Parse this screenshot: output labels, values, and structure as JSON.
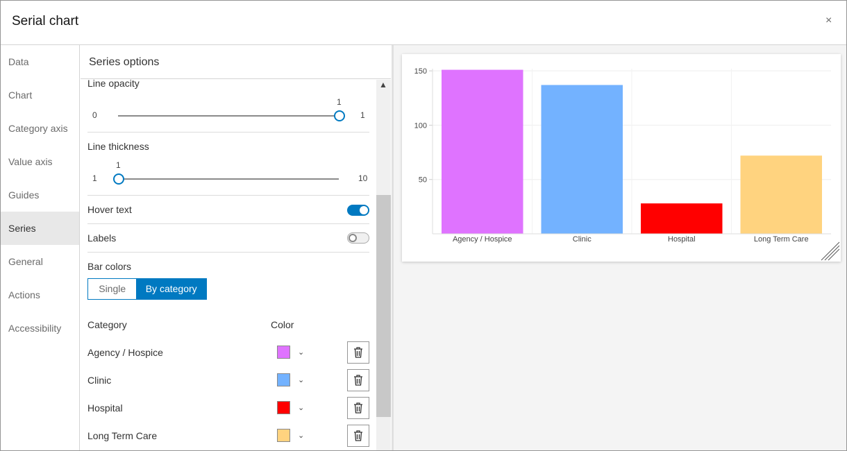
{
  "window": {
    "title": "Serial chart",
    "close": "×"
  },
  "nav": {
    "items": [
      "Data",
      "Chart",
      "Category axis",
      "Value axis",
      "Guides",
      "Series",
      "General",
      "Actions",
      "Accessibility"
    ],
    "selected": "Series"
  },
  "panel": {
    "title": "Series options",
    "line_opacity": {
      "label": "Line opacity",
      "min": "0",
      "max": "1",
      "value": "1",
      "fraction": 1
    },
    "line_thickness": {
      "label": "Line thickness",
      "min": "1",
      "max": "10",
      "value": "1",
      "fraction": 0
    },
    "hover_text": {
      "label": "Hover text",
      "on": true
    },
    "labels": {
      "label": "Labels",
      "on": false
    },
    "bar_colors": {
      "label": "Bar colors",
      "options": [
        "Single",
        "By category"
      ],
      "selected": "By category"
    },
    "table": {
      "col_category": "Category",
      "col_color": "Color",
      "rows": [
        {
          "category": "Agency / Hospice",
          "color": "#df73ff"
        },
        {
          "category": "Clinic",
          "color": "#73b2ff"
        },
        {
          "category": "Hospital",
          "color": "#ff0000"
        },
        {
          "category": "Long Term Care",
          "color": "#ffd37f"
        }
      ]
    }
  },
  "chart_data": {
    "type": "bar",
    "categories": [
      "Agency / Hospice",
      "Clinic",
      "Hospital",
      "Long Term Care"
    ],
    "values": [
      151,
      137,
      28,
      72
    ],
    "colors": [
      "#df73ff",
      "#73b2ff",
      "#ff0000",
      "#ffd37f"
    ],
    "yticks": [
      "50",
      "100",
      "150"
    ],
    "ylim": [
      0,
      152
    ],
    "grid": true
  }
}
